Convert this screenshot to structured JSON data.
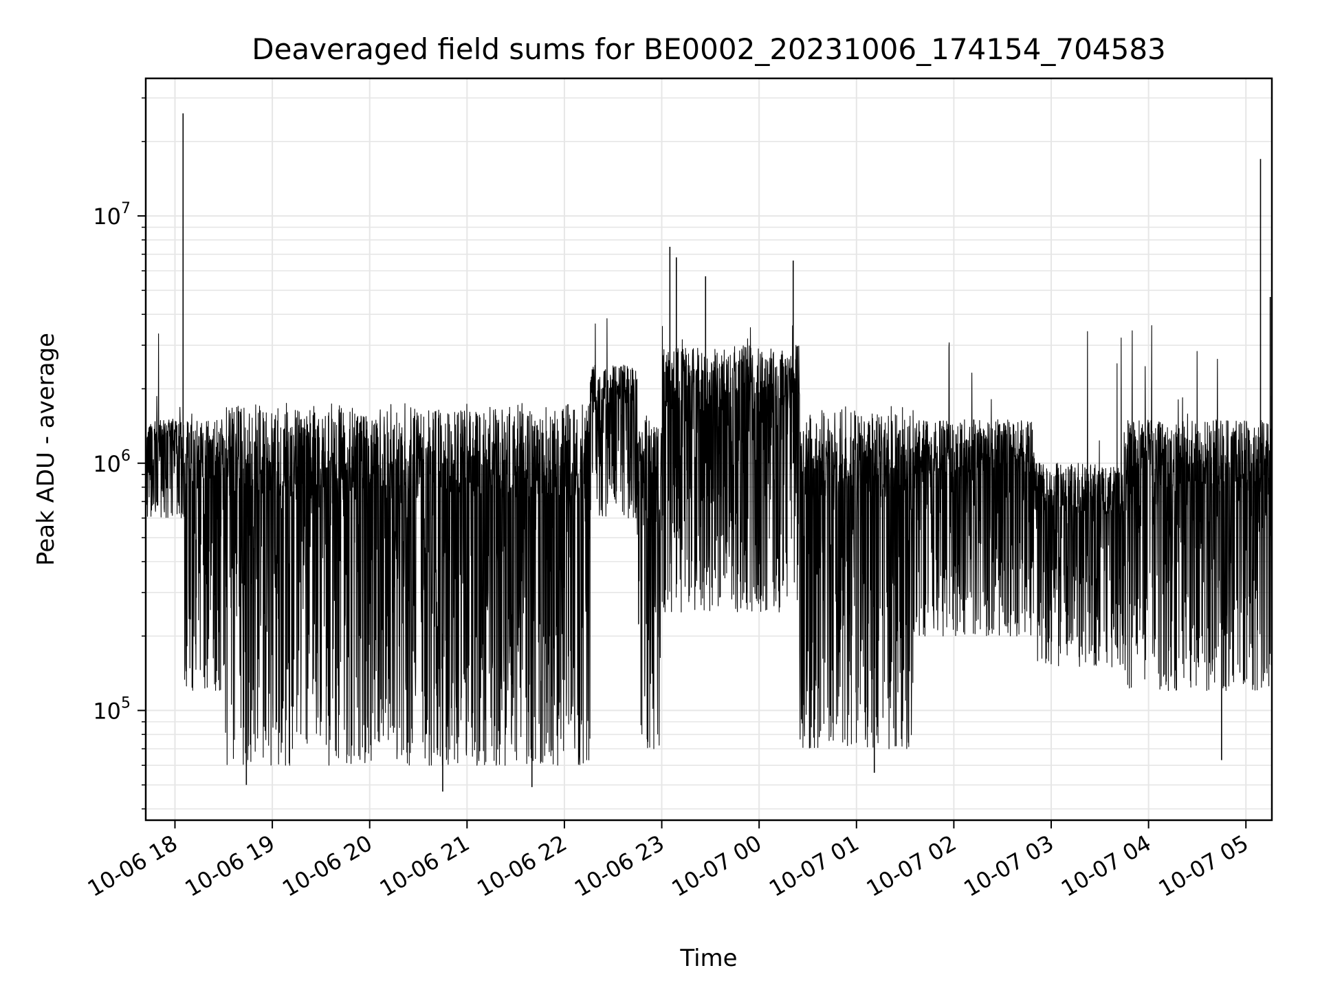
{
  "chart_data": {
    "type": "line",
    "title": "Deaveraged field sums for BE0002_20231006_174154_704583",
    "xlabel": "Time",
    "ylabel": "Peak ADU - average",
    "yscale": "log",
    "ylim": [
      36000,
      36000000
    ],
    "xlim": [
      "2023-10-06 17:42",
      "2023-10-07 05:16"
    ],
    "grid": true,
    "line_color": "#000000",
    "grid_color": "#e6e6e6",
    "x_ticks": [
      {
        "time": "2023-10-06 18:00",
        "label": "10-06 18"
      },
      {
        "time": "2023-10-06 19:00",
        "label": "10-06 19"
      },
      {
        "time": "2023-10-06 20:00",
        "label": "10-06 20"
      },
      {
        "time": "2023-10-06 21:00",
        "label": "10-06 21"
      },
      {
        "time": "2023-10-06 22:00",
        "label": "10-06 22"
      },
      {
        "time": "2023-10-06 23:00",
        "label": "10-06 23"
      },
      {
        "time": "2023-10-07 00:00",
        "label": "10-07 00"
      },
      {
        "time": "2023-10-07 01:00",
        "label": "10-07 01"
      },
      {
        "time": "2023-10-07 02:00",
        "label": "10-07 02"
      },
      {
        "time": "2023-10-07 03:00",
        "label": "10-07 03"
      },
      {
        "time": "2023-10-07 04:00",
        "label": "10-07 04"
      },
      {
        "time": "2023-10-07 05:00",
        "label": "10-07 05"
      }
    ],
    "y_ticks": [
      {
        "value": 100000,
        "base": "10",
        "exp": "5"
      },
      {
        "value": 1000000,
        "base": "10",
        "exp": "6"
      },
      {
        "value": 10000000,
        "base": "10",
        "exp": "7"
      }
    ],
    "segments": [
      {
        "start": "2023-10-06 17:42",
        "end": "2023-10-06 18:06",
        "low": 600000,
        "high": 1500000,
        "spike": 3600000
      },
      {
        "start": "2023-10-06 18:06",
        "end": "2023-10-06 18:30",
        "low": 120000,
        "high": 1500000,
        "spike": 1600000
      },
      {
        "start": "2023-10-06 18:30",
        "end": "2023-10-06 22:16",
        "low": 60000,
        "high": 1650000,
        "spike": 1750000
      },
      {
        "start": "2023-10-06 22:16",
        "end": "2023-10-06 22:45",
        "low": 600000,
        "high": 2500000,
        "spike": 4400000
      },
      {
        "start": "2023-10-06 22:45",
        "end": "2023-10-06 23:00",
        "low": 70000,
        "high": 1500000,
        "spike": 1600000
      },
      {
        "start": "2023-10-06 23:00",
        "end": "2023-10-07 00:25",
        "low": 250000,
        "high": 3000000,
        "spike": 4500000
      },
      {
        "start": "2023-10-07 00:25",
        "end": "2023-10-07 01:35",
        "low": 70000,
        "high": 1600000,
        "spike": 1700000
      },
      {
        "start": "2023-10-07 01:35",
        "end": "2023-10-07 02:50",
        "low": 200000,
        "high": 1500000,
        "spike": 3500000
      },
      {
        "start": "2023-10-07 02:50",
        "end": "2023-10-07 03:45",
        "low": 150000,
        "high": 1000000,
        "spike": 3800000
      },
      {
        "start": "2023-10-07 03:45",
        "end": "2023-10-07 05:16",
        "low": 120000,
        "high": 1500000,
        "spike": 4500000
      }
    ],
    "spikes": [
      {
        "time": "2023-10-06 18:05",
        "value": 26000000
      },
      {
        "time": "2023-10-06 23:05",
        "value": 7500000
      },
      {
        "time": "2023-10-06 23:09",
        "value": 6800000
      },
      {
        "time": "2023-10-06 23:27",
        "value": 5700000
      },
      {
        "time": "2023-10-07 00:21",
        "value": 6600000
      },
      {
        "time": "2023-10-07 05:09",
        "value": 17000000
      },
      {
        "time": "2023-10-07 05:15",
        "value": 4700000
      },
      {
        "time": "2023-10-06 20:45",
        "value": 47000
      },
      {
        "time": "2023-10-06 21:40",
        "value": 49000
      },
      {
        "time": "2023-10-06 18:44",
        "value": 50000
      },
      {
        "time": "2023-10-07 04:45",
        "value": 63000
      },
      {
        "time": "2023-10-07 01:11",
        "value": 56000
      }
    ]
  }
}
